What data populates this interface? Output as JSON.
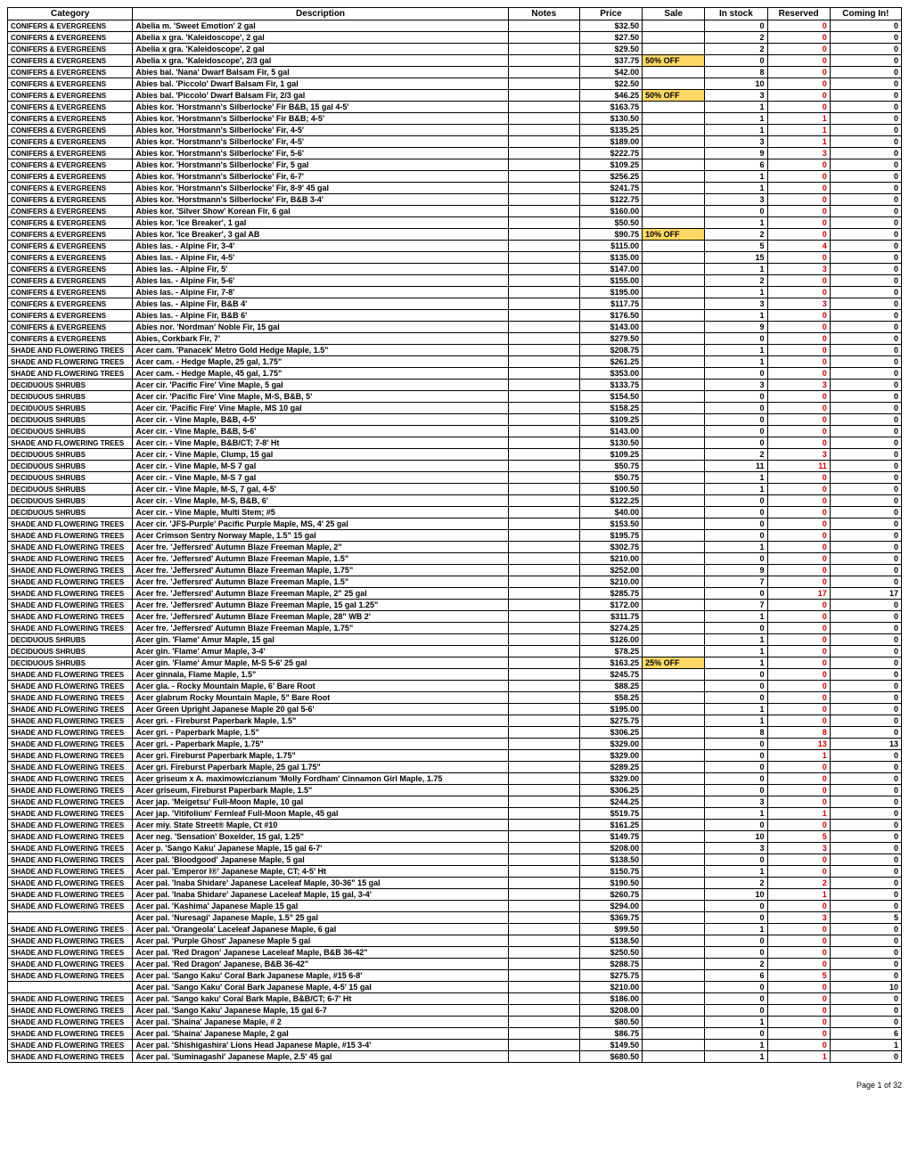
{
  "headers": [
    "Category",
    "Description",
    "Notes",
    "Price",
    "Sale",
    "In stock",
    "Reserved",
    "Coming In!"
  ],
  "footer": "Page 1 of 32",
  "sale_highlight_bg": "#ffd966",
  "reserved_color": "#c00",
  "rows": [
    {
      "cat": "CONIFERS & EVERGREENS",
      "desc": "Abelia m. 'Sweet Emotion' 2 gal",
      "price": "$32.50",
      "sale": "",
      "stock": "0",
      "res": "0",
      "com": "0"
    },
    {
      "cat": "CONIFERS & EVERGREENS",
      "desc": "Abelia x gra. 'Kaleidoscope', 2 gal",
      "price": "$27.50",
      "sale": "",
      "stock": "2",
      "res": "0",
      "com": "0"
    },
    {
      "cat": "CONIFERS & EVERGREENS",
      "desc": "Abelia x gra. 'Kaleidoscope', 2 gal",
      "price": "$29.50",
      "sale": "",
      "stock": "2",
      "res": "0",
      "com": "0"
    },
    {
      "cat": "CONIFERS & EVERGREENS",
      "desc": "Abelia x gra. 'Kaleidoscope', 2/3 gal",
      "price": "$37.75",
      "sale": "50% OFF",
      "stock": "0",
      "res": "0",
      "com": "0"
    },
    {
      "cat": "CONIFERS & EVERGREENS",
      "desc": "Abies bal. 'Nana' Dwarf Balsam Fir, 5 gal",
      "price": "$42.00",
      "sale": "",
      "stock": "8",
      "res": "0",
      "com": "0"
    },
    {
      "cat": "CONIFERS & EVERGREENS",
      "desc": "Abies bal. 'Piccolo' Dwarf Balsam Fir, 1 gal",
      "price": "$22.50",
      "sale": "",
      "stock": "10",
      "res": "0",
      "com": "0"
    },
    {
      "cat": "CONIFERS & EVERGREENS",
      "desc": "Abies bal. 'Piccolo' Dwarf Balsam Fir, 2/3 gal",
      "price": "$46.25",
      "sale": "50% OFF",
      "stock": "3",
      "res": "0",
      "com": "0"
    },
    {
      "cat": "CONIFERS & EVERGREENS",
      "desc": "Abies kor. 'Horstmann's Silberlocke' Fir B&B, 15 gal 4-5'",
      "price": "$163.75",
      "sale": "",
      "stock": "1",
      "res": "0",
      "com": "0"
    },
    {
      "cat": "CONIFERS & EVERGREENS",
      "desc": "Abies kor. 'Horstmann's Silberlocke' Fir B&B; 4-5'",
      "price": "$130.50",
      "sale": "",
      "stock": "1",
      "res": "1",
      "com": "0"
    },
    {
      "cat": "CONIFERS & EVERGREENS",
      "desc": "Abies kor. 'Horstmann's Silberlocke' Fir,  4-5'",
      "price": "$135.25",
      "sale": "",
      "stock": "1",
      "res": "1",
      "com": "0"
    },
    {
      "cat": "CONIFERS & EVERGREENS",
      "desc": "Abies kor. 'Horstmann's Silberlocke' Fir, 4-5'",
      "price": "$189.00",
      "sale": "",
      "stock": "3",
      "res": "1",
      "com": "0"
    },
    {
      "cat": "CONIFERS & EVERGREENS",
      "desc": "Abies kor. 'Horstmann's Silberlocke' Fir, 5-6'",
      "price": "$222.75",
      "sale": "",
      "stock": "9",
      "res": "3",
      "com": "0"
    },
    {
      "cat": "CONIFERS & EVERGREENS",
      "desc": "Abies kor. 'Horstmann's Silberlocke' Fir, 5 gal",
      "price": "$109.25",
      "sale": "",
      "stock": "6",
      "res": "0",
      "com": "0"
    },
    {
      "cat": "CONIFERS & EVERGREENS",
      "desc": "Abies kor. 'Horstmann's Silberlocke' Fir, 6-7'",
      "price": "$256.25",
      "sale": "",
      "stock": "1",
      "res": "0",
      "com": "0"
    },
    {
      "cat": "CONIFERS & EVERGREENS",
      "desc": "Abies kor. 'Horstmann's Silberlocke' Fir, 8-9' 45 gal",
      "price": "$241.75",
      "sale": "",
      "stock": "1",
      "res": "0",
      "com": "0"
    },
    {
      "cat": "CONIFERS & EVERGREENS",
      "desc": "Abies kor. 'Horstmann's Silberlocke' Fir, B&B 3-4'",
      "price": "$122.75",
      "sale": "",
      "stock": "3",
      "res": "0",
      "com": "0"
    },
    {
      "cat": "CONIFERS & EVERGREENS",
      "desc": "Abies kor. 'Silver Show' Korean Fir, 6 gal",
      "price": "$160.00",
      "sale": "",
      "stock": "0",
      "res": "0",
      "com": "0"
    },
    {
      "cat": "CONIFERS & EVERGREENS",
      "desc": "Abies kor. 'Ice Breaker', 1 gal",
      "price": "$50.50",
      "sale": "",
      "stock": "1",
      "res": "0",
      "com": "0"
    },
    {
      "cat": "CONIFERS & EVERGREENS",
      "desc": "Abies kor. 'Ice Breaker', 3 gal AB",
      "price": "$90.75",
      "sale": "10% OFF",
      "stock": "2",
      "res": "0",
      "com": "0"
    },
    {
      "cat": "CONIFERS & EVERGREENS",
      "desc": "Abies las. - Alpine Fir, 3-4'",
      "price": "$115.00",
      "sale": "",
      "stock": "5",
      "res": "4",
      "com": "0"
    },
    {
      "cat": "CONIFERS & EVERGREENS",
      "desc": "Abies las. - Alpine Fir, 4-5'",
      "price": "$135.00",
      "sale": "",
      "stock": "15",
      "res": "0",
      "com": "0"
    },
    {
      "cat": "CONIFERS & EVERGREENS",
      "desc": "Abies las. - Alpine Fir, 5'",
      "price": "$147.00",
      "sale": "",
      "stock": "1",
      "res": "3",
      "com": "0"
    },
    {
      "cat": "CONIFERS & EVERGREENS",
      "desc": "Abies las. - Alpine Fir, 5-6'",
      "price": "$155.00",
      "sale": "",
      "stock": "2",
      "res": "0",
      "com": "0"
    },
    {
      "cat": "CONIFERS & EVERGREENS",
      "desc": "Abies las. - Alpine Fir, 7-8'",
      "price": "$195.00",
      "sale": "",
      "stock": "1",
      "res": "0",
      "com": "0"
    },
    {
      "cat": "CONIFERS & EVERGREENS",
      "desc": "Abies las. - Alpine Fir, B&B 4'",
      "price": "$117.75",
      "sale": "",
      "stock": "3",
      "res": "3",
      "com": "0"
    },
    {
      "cat": "CONIFERS & EVERGREENS",
      "desc": "Abies las. - Alpine Fir, B&B 6'",
      "price": "$176.50",
      "sale": "",
      "stock": "1",
      "res": "0",
      "com": "0"
    },
    {
      "cat": "CONIFERS & EVERGREENS",
      "desc": "Abies nor. 'Nordman' Noble Fir, 15 gal",
      "price": "$143.00",
      "sale": "",
      "stock": "9",
      "res": "0",
      "com": "0"
    },
    {
      "cat": "CONIFERS & EVERGREENS",
      "desc": "Abies, Corkbark Fir, 7'",
      "price": "$279.50",
      "sale": "",
      "stock": "0",
      "res": "0",
      "com": "0"
    },
    {
      "cat": "SHADE AND FLOWERING TREES",
      "desc": "Acer cam. 'Panacek' Metro Gold Hedge Maple, 1.5\"",
      "price": "$208.75",
      "sale": "",
      "stock": "1",
      "res": "0",
      "com": "0"
    },
    {
      "cat": "SHADE AND FLOWERING TREES",
      "desc": "Acer cam. - Hedge Maple, 25 gal, 1.75\"",
      "price": "$261.25",
      "sale": "",
      "stock": "1",
      "res": "0",
      "com": "0"
    },
    {
      "cat": "SHADE AND FLOWERING TREES",
      "desc": "Acer cam. - Hedge Maple, 45 gal, 1.75\"",
      "price": "$353.00",
      "sale": "",
      "stock": "0",
      "res": "0",
      "com": "0"
    },
    {
      "cat": "DECIDUOUS SHRUBS",
      "desc": "Acer cir. 'Pacific Fire' Vine Maple, 5 gal",
      "price": "$133.75",
      "sale": "",
      "stock": "3",
      "res": "3",
      "com": "0"
    },
    {
      "cat": "DECIDUOUS SHRUBS",
      "desc": "Acer cir. 'Pacific Fire' Vine Maple, M-S, B&B, 5'",
      "price": "$154.50",
      "sale": "",
      "stock": "0",
      "res": "0",
      "com": "0"
    },
    {
      "cat": "DECIDUOUS SHRUBS",
      "desc": "Acer cir. 'Pacific Fire' Vine Maple, MS 10 gal",
      "price": "$158.25",
      "sale": "",
      "stock": "0",
      "res": "0",
      "com": "0"
    },
    {
      "cat": "DECIDUOUS SHRUBS",
      "desc": "Acer cir. - Vine Maple, B&B, 4-5'",
      "price": "$109.25",
      "sale": "",
      "stock": "0",
      "res": "0",
      "com": "0"
    },
    {
      "cat": "DECIDUOUS SHRUBS",
      "desc": "Acer cir. - Vine Maple, B&B, 5-6'",
      "price": "$143.00",
      "sale": "",
      "stock": "0",
      "res": "0",
      "com": "0"
    },
    {
      "cat": "SHADE AND FLOWERING TREES",
      "desc": "Acer cir. - Vine Maple, B&B/CT; 7-8' Ht",
      "price": "$130.50",
      "sale": "",
      "stock": "0",
      "res": "0",
      "com": "0"
    },
    {
      "cat": "DECIDUOUS SHRUBS",
      "desc": "Acer cir. - Vine Maple, Clump, 15 gal",
      "price": "$109.25",
      "sale": "",
      "stock": "2",
      "res": "3",
      "com": "0"
    },
    {
      "cat": "DECIDUOUS SHRUBS",
      "desc": "Acer cir. - Vine Maple, M-S 7 gal",
      "price": "$50.75",
      "sale": "",
      "stock": "11",
      "res": "11",
      "com": "0"
    },
    {
      "cat": "DECIDUOUS SHRUBS",
      "desc": "Acer cir. - Vine Maple, M-S 7 gal",
      "price": "$50.75",
      "sale": "",
      "stock": "1",
      "res": "0",
      "com": "0"
    },
    {
      "cat": "DECIDUOUS SHRUBS",
      "desc": "Acer cir. - Vine Maple, M-S, 7 gal, 4-5'",
      "price": "$100.50",
      "sale": "",
      "stock": "1",
      "res": "0",
      "com": "0"
    },
    {
      "cat": "DECIDUOUS SHRUBS",
      "desc": "Acer cir. - Vine Maple, M-S, B&B, 6'",
      "price": "$122.25",
      "sale": "",
      "stock": "0",
      "res": "0",
      "com": "0"
    },
    {
      "cat": "DECIDUOUS SHRUBS",
      "desc": "Acer cir. - Vine Maple, Multi Stem; #5",
      "price": "$40.00",
      "sale": "",
      "stock": "0",
      "res": "0",
      "com": "0"
    },
    {
      "cat": "SHADE AND FLOWERING TREES",
      "desc": "Acer cir. 'JFS-Purple' Pacific Purple Maple, MS, 4' 25 gal",
      "price": "$153.50",
      "sale": "",
      "stock": "0",
      "res": "0",
      "com": "0"
    },
    {
      "cat": "SHADE AND FLOWERING TREES",
      "desc": "Acer Crimson Sentry Norway Maple, 1.5\" 15 gal",
      "price": "$195.75",
      "sale": "",
      "stock": "0",
      "res": "0",
      "com": "0"
    },
    {
      "cat": "SHADE AND FLOWERING TREES",
      "desc": "Acer fre. 'Jeffersred'  Autumn Blaze Freeman Maple, 2\"",
      "price": "$302.75",
      "sale": "",
      "stock": "1",
      "res": "0",
      "com": "0"
    },
    {
      "cat": "SHADE AND FLOWERING TREES",
      "desc": "Acer fre. 'Jeffersred'  Autumn Blaze Freeman Maple, 1.5\"",
      "price": "$210.00",
      "sale": "",
      "stock": "0",
      "res": "0",
      "com": "0"
    },
    {
      "cat": "SHADE AND FLOWERING TREES",
      "desc": "Acer fre. 'Jeffersred'  Autumn Blaze Freeman Maple, 1.75\"",
      "price": "$252.00",
      "sale": "",
      "stock": "9",
      "res": "0",
      "com": "0"
    },
    {
      "cat": "SHADE AND FLOWERING TREES",
      "desc": "Acer fre. 'Jeffersred'  Autumn Blaze Freeman Maple, 1.5\"",
      "price": "$210.00",
      "sale": "",
      "stock": "7",
      "res": "0",
      "com": "0"
    },
    {
      "cat": "SHADE AND FLOWERING TREES",
      "desc": "Acer fre. 'Jeffersred'  Autumn Blaze Freeman Maple, 2\" 25 gal",
      "price": "$285.75",
      "sale": "",
      "stock": "0",
      "res": "17",
      "com": "17"
    },
    {
      "cat": "SHADE AND FLOWERING TREES",
      "desc": "Acer fre. 'Jeffersred'  Autumn Blaze Freeman Maple, 15 gal 1.25\"",
      "price": "$172.00",
      "sale": "",
      "stock": "7",
      "res": "0",
      "com": "0"
    },
    {
      "cat": "SHADE AND FLOWERING TREES",
      "desc": "Acer fre. 'Jeffersred'  Autumn Blaze Freeman Maple, 28\" WB 2'",
      "price": "$311.75",
      "sale": "",
      "stock": "1",
      "res": "0",
      "com": "0"
    },
    {
      "cat": "SHADE AND FLOWERING TREES",
      "desc": "Acer fre. 'Jeffersred'  Autumn Blaze Freeman Maple, 1.75\"",
      "price": "$274.25",
      "sale": "",
      "stock": "0",
      "res": "0",
      "com": "0"
    },
    {
      "cat": "DECIDUOUS SHRUBS",
      "desc": "Acer gin. 'Flame'  Amur Maple, 15 gal",
      "price": "$126.00",
      "sale": "",
      "stock": "1",
      "res": "0",
      "com": "0"
    },
    {
      "cat": "DECIDUOUS SHRUBS",
      "desc": "Acer gin. 'Flame'  Amur Maple, 3-4'",
      "price": "$78.25",
      "sale": "",
      "stock": "1",
      "res": "0",
      "com": "0"
    },
    {
      "cat": "DECIDUOUS SHRUBS",
      "desc": "Acer gin. 'Flame'  Amur Maple, M-S 5-6' 25 gal",
      "price": "$163.25",
      "sale": "25% OFF",
      "stock": "1",
      "res": "0",
      "com": "0"
    },
    {
      "cat": "SHADE AND FLOWERING TREES",
      "desc": "Acer ginnala, Flame Maple, 1.5\"",
      "price": "$245.75",
      "sale": "",
      "stock": "0",
      "res": "0",
      "com": "0"
    },
    {
      "cat": "SHADE AND FLOWERING TREES",
      "desc": "Acer gla. - Rocky Mountain Maple, 6' Bare Root",
      "price": "$88.25",
      "sale": "",
      "stock": "0",
      "res": "0",
      "com": "0"
    },
    {
      "cat": "SHADE AND FLOWERING TREES",
      "desc": "Acer glabrum Rocky Mountain Maple, 5\" Bare Root",
      "price": "$58.25",
      "sale": "",
      "stock": "0",
      "res": "0",
      "com": "0"
    },
    {
      "cat": "SHADE AND FLOWERING TREES",
      "desc": "Acer Green Upright Japanese Maple 20 gal 5-6'",
      "price": "$195.00",
      "sale": "",
      "stock": "1",
      "res": "0",
      "com": "0"
    },
    {
      "cat": "SHADE AND FLOWERING TREES",
      "desc": "Acer gri. - Fireburst Paperbark Maple, 1.5\"",
      "price": "$275.75",
      "sale": "",
      "stock": "1",
      "res": "0",
      "com": "0"
    },
    {
      "cat": "SHADE AND FLOWERING TREES",
      "desc": "Acer gri. - Paperbark Maple, 1.5\"",
      "price": "$306.25",
      "sale": "",
      "stock": "8",
      "res": "8",
      "com": "0"
    },
    {
      "cat": "SHADE AND FLOWERING TREES",
      "desc": "Acer gri. - Paperbark Maple, 1.75\"",
      "price": "$329.00",
      "sale": "",
      "stock": "0",
      "res": "13",
      "com": "13"
    },
    {
      "cat": "SHADE AND FLOWERING TREES",
      "desc": "Acer gri. Fireburst Paperbark Maple, 1.75\"",
      "price": "$329.00",
      "sale": "",
      "stock": "0",
      "res": "1",
      "com": "0"
    },
    {
      "cat": "SHADE AND FLOWERING TREES",
      "desc": "Acer gri. Fireburst Paperbark Maple, 25 gal 1.75\"",
      "price": "$289.25",
      "sale": "",
      "stock": "0",
      "res": "0",
      "com": "0"
    },
    {
      "cat": "SHADE AND FLOWERING TREES",
      "desc": "Acer griseum x A. maximowiczianum 'Molly Fordham' Cinnamon Girl Maple, 1.75",
      "price": "$329.00",
      "sale": "",
      "stock": "0",
      "res": "0",
      "com": "0"
    },
    {
      "cat": "SHADE AND FLOWERING TREES",
      "desc": "Acer griseum, Fireburst Paperbark Maple, 1.5\"",
      "price": "$306.25",
      "sale": "",
      "stock": "0",
      "res": "0",
      "com": "0"
    },
    {
      "cat": "SHADE AND FLOWERING TREES",
      "desc": "Acer jap. 'Meigetsu' Full-Moon Maple, 10 gal",
      "price": "$244.25",
      "sale": "",
      "stock": "3",
      "res": "0",
      "com": "0"
    },
    {
      "cat": "SHADE AND FLOWERING TREES",
      "desc": "Acer jap. 'Vitifolium' Fernleaf Full-Moon Maple, 45 gal",
      "price": "$519.75",
      "sale": "",
      "stock": "1",
      "res": "1",
      "com": "0"
    },
    {
      "cat": "SHADE AND FLOWERING TREES",
      "desc": "Acer miy. State Street® Maple, Ct  #10",
      "price": "$161.25",
      "sale": "",
      "stock": "0",
      "res": "0",
      "com": "0"
    },
    {
      "cat": "SHADE AND FLOWERING TREES",
      "desc": "Acer neg. 'Sensation' Boxelder, 15 gal, 1.25\"",
      "price": "$149.75",
      "sale": "",
      "stock": "10",
      "res": "5",
      "com": "0"
    },
    {
      "cat": "SHADE AND FLOWERING TREES",
      "desc": "Acer p. 'Sango Kaku' Japanese Maple, 15 gal 6-7'",
      "price": "$208.00",
      "sale": "",
      "stock": "3",
      "res": "3",
      "com": "0"
    },
    {
      "cat": "SHADE AND FLOWERING TREES",
      "desc": "Acer pal. 'Bloodgood' Japanese Maple, 5 gal",
      "price": "$138.50",
      "sale": "",
      "stock": "0",
      "res": "0",
      "com": "0"
    },
    {
      "cat": "SHADE AND FLOWERING TREES",
      "desc": "Acer pal. 'Emperor I®' Japanese Maple, CT; 4-5' Ht",
      "price": "$150.75",
      "sale": "",
      "stock": "1",
      "res": "0",
      "com": "0"
    },
    {
      "cat": "SHADE AND FLOWERING TREES",
      "desc": "Acer pal. 'Inaba Shidare' Japanese Laceleaf Maple, 30-36\" 15 gal",
      "price": "$190.50",
      "sale": "",
      "stock": "2",
      "res": "2",
      "com": "0"
    },
    {
      "cat": "SHADE AND FLOWERING TREES",
      "desc": "Acer pal. 'Inaba Shidare' Japanese Laceleaf Maple, 15 gal, 3-4'",
      "price": "$260.75",
      "sale": "",
      "stock": "10",
      "res": "1",
      "com": "0"
    },
    {
      "cat": "SHADE AND FLOWERING TREES",
      "desc": "Acer pal. 'Kashima' Japanese Maple 15 gal",
      "price": "$294.00",
      "sale": "",
      "stock": "0",
      "res": "0",
      "com": "0"
    },
    {
      "cat": "",
      "desc": "Acer pal. 'Nuresagi' Japanese Maple, 1.5\"  25 gal",
      "price": "$369.75",
      "sale": "",
      "stock": "0",
      "res": "3",
      "com": "5"
    },
    {
      "cat": "SHADE AND FLOWERING TREES",
      "desc": "Acer pal. 'Orangeola' Laceleaf Japanese Maple, 6 gal",
      "price": "$99.50",
      "sale": "",
      "stock": "1",
      "res": "0",
      "com": "0"
    },
    {
      "cat": "SHADE AND FLOWERING TREES",
      "desc": "Acer pal. 'Purple Ghost' Japanese Maple 5 gal",
      "price": "$138.50",
      "sale": "",
      "stock": "0",
      "res": "0",
      "com": "0"
    },
    {
      "cat": "SHADE AND FLOWERING TREES",
      "desc": "Acer pal. 'Red Dragon' Japanese Laceleaf Maple, B&B 36-42\"",
      "price": "$250.50",
      "sale": "",
      "stock": "0",
      "res": "0",
      "com": "0"
    },
    {
      "cat": "SHADE AND FLOWERING TREES",
      "desc": "Acer pal. 'Red Dragon' Japanese, B&B 36-42\"",
      "price": "$288.75",
      "sale": "",
      "stock": "2",
      "res": "0",
      "com": "0"
    },
    {
      "cat": "SHADE AND FLOWERING TREES",
      "desc": "Acer pal. 'Sango Kaku' Coral Bark Japanese Maple, #15 6-8'",
      "price": "$275.75",
      "sale": "",
      "stock": "6",
      "res": "5",
      "com": "0"
    },
    {
      "cat": "",
      "desc": "Acer pal. 'Sango Kaku' Coral Bark Japanese Maple, 4-5' 15 gal",
      "price": "$210.00",
      "sale": "",
      "stock": "0",
      "res": "0",
      "com": "10"
    },
    {
      "cat": "SHADE AND FLOWERING TREES",
      "desc": "Acer pal. 'Sango kaku' Coral Bark Maple, B&B/CT; 6-7' Ht",
      "price": "$186.00",
      "sale": "",
      "stock": "0",
      "res": "0",
      "com": "0"
    },
    {
      "cat": "SHADE AND FLOWERING TREES",
      "desc": "Acer pal. 'Sango Kaku' Japanese Maple, 15 gal 6-7",
      "price": "$208.00",
      "sale": "",
      "stock": "0",
      "res": "0",
      "com": "0"
    },
    {
      "cat": "SHADE AND FLOWERING TREES",
      "desc": "Acer pal. 'Shaina' Japanese Maple, # 2",
      "price": "$80.50",
      "sale": "",
      "stock": "1",
      "res": "0",
      "com": "0"
    },
    {
      "cat": "SHADE AND FLOWERING TREES",
      "desc": "Acer pal. 'Shaina' Japanese Maple, 2 gal",
      "price": "$86.75",
      "sale": "",
      "stock": "0",
      "res": "0",
      "com": "6"
    },
    {
      "cat": "SHADE AND FLOWERING TREES",
      "desc": "Acer pal. 'Shishigashira' Lions Head Japanese Maple, #15 3-4'",
      "price": "$149.50",
      "sale": "",
      "stock": "1",
      "res": "0",
      "com": "1"
    },
    {
      "cat": "SHADE AND FLOWERING TREES",
      "desc": "Acer pal. 'Suminagashi' Japanese Maple, 2.5' 45 gal",
      "price": "$680.50",
      "sale": "",
      "stock": "1",
      "res": "1",
      "com": "0"
    }
  ]
}
